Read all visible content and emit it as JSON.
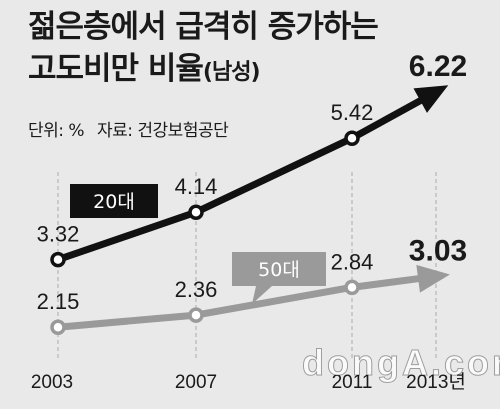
{
  "chart_data": {
    "type": "line",
    "title_line1": "젊은층에서 급격히 증가하는",
    "title_line2": "고도비만 비율",
    "title_suffix": "(남성)",
    "unit_label": "단위: %",
    "source": "자료: 건강보험공단",
    "x_ticks": [
      "2003",
      "2007",
      "2011",
      "2013년"
    ],
    "x": [
      2003,
      2007,
      2011,
      2013
    ],
    "series": [
      {
        "name": "20대",
        "values": [
          3.32,
          4.14,
          5.42,
          6.22
        ],
        "labels": [
          "3.32",
          "4.14",
          "5.42",
          "6.22"
        ],
        "color": "#111111"
      },
      {
        "name": "50대",
        "values": [
          2.15,
          2.36,
          2.84,
          3.03
        ],
        "labels": [
          "2.15",
          "2.36",
          "2.84",
          "3.03"
        ],
        "color": "#9a9a9a"
      }
    ],
    "grid": "vertical",
    "background": "#e9e9e9"
  },
  "watermark": "dongA.com"
}
